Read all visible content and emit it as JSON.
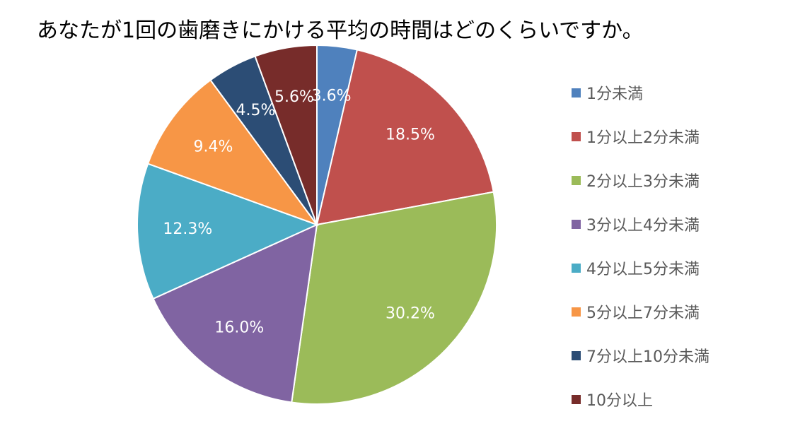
{
  "chart_data": {
    "type": "pie",
    "title": "あなたが1回の歯磨きにかける平均の時間はどのくらいですか。",
    "legend_position": "right",
    "slices": [
      {
        "label": "1分未満",
        "value": 3.6,
        "display": "3.6%",
        "color": "#4F81BD"
      },
      {
        "label": "1分以上2分未満",
        "value": 18.5,
        "display": "18.5%",
        "color": "#C0504D"
      },
      {
        "label": "2分以上3分未満",
        "value": 30.2,
        "display": "30.2%",
        "color": "#9BBB59"
      },
      {
        "label": "3分以上4分未満",
        "value": 16.0,
        "display": "16.0%",
        "color": "#8064A2"
      },
      {
        "label": "4分以上5分未満",
        "value": 12.3,
        "display": "12.3%",
        "color": "#4BACC6"
      },
      {
        "label": "5分以上7分未満",
        "value": 9.4,
        "display": "9.4%",
        "color": "#F79646"
      },
      {
        "label": "7分以上10分未満",
        "value": 4.5,
        "display": "4.5%",
        "color": "#2C4D75"
      },
      {
        "label": "10分以上",
        "value": 5.6,
        "display": "5.6%",
        "color": "#772C2A"
      }
    ]
  }
}
